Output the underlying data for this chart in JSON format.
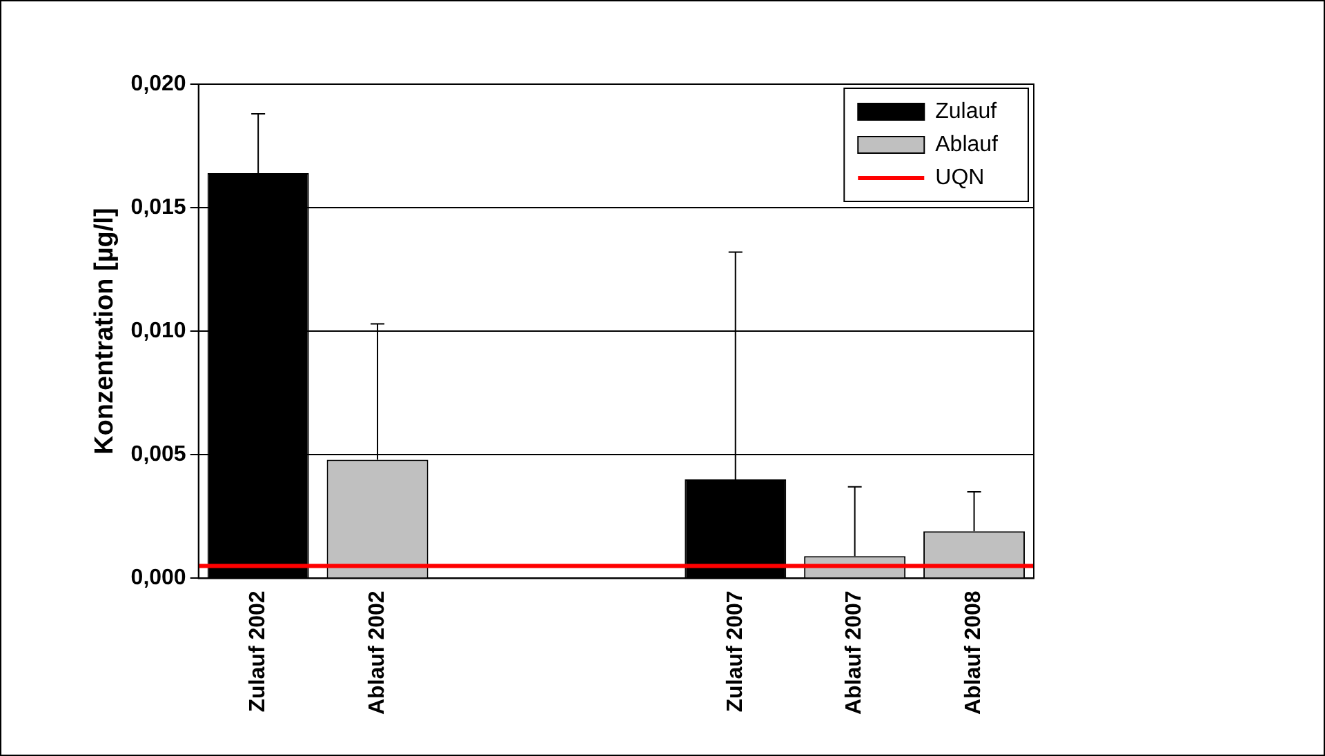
{
  "chart_data": {
    "type": "bar",
    "ylabel": "Konzentration [µg/l]",
    "categories": [
      "Zulauf 2002",
      "Ablauf 2002",
      null,
      null,
      "Zulauf 2007",
      "Ablauf 2007",
      "Ablauf 2008"
    ],
    "series": [
      {
        "name": "Zulauf",
        "color": "#000000",
        "values": [
          0.0164,
          null,
          null,
          null,
          0.004,
          null,
          null
        ],
        "errors": [
          [
            0.0164,
            0.0188
          ],
          null,
          null,
          null,
          [
            0.004,
            0.0132
          ],
          null,
          null
        ]
      },
      {
        "name": "Ablauf",
        "color": "#c0c0c0",
        "values": [
          null,
          0.0048,
          null,
          null,
          null,
          0.0009,
          0.0019
        ],
        "errors": [
          null,
          [
            0.0048,
            0.0103
          ],
          null,
          null,
          null,
          [
            0.0009,
            0.0037
          ],
          [
            0.0019,
            0.0035
          ]
        ]
      }
    ],
    "ylim": [
      0,
      0.02
    ],
    "yticks": [
      {
        "value": 0,
        "label": "0,000"
      },
      {
        "value": 0.005,
        "label": "0,005"
      },
      {
        "value": 0.01,
        "label": "0,010"
      },
      {
        "value": 0.015,
        "label": "0,015"
      },
      {
        "value": 0.02,
        "label": "0,020"
      }
    ],
    "ref_lines": [
      {
        "axis": "y",
        "value": 0.0005,
        "label": "UQN",
        "color": "#ff0000"
      }
    ],
    "grid": "y",
    "legend": "top right"
  }
}
